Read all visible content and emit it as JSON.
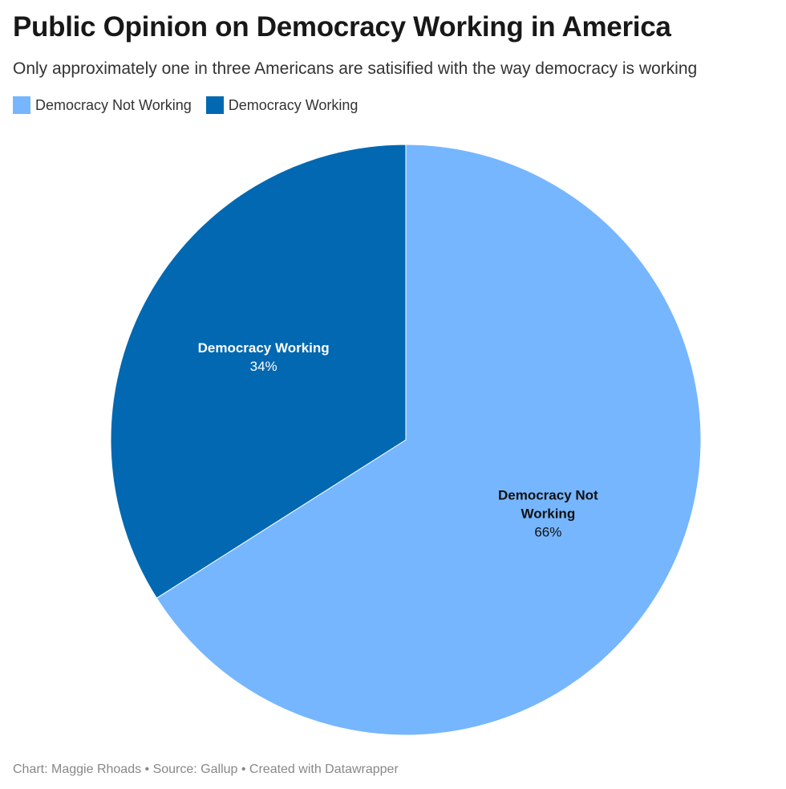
{
  "title": "Public Opinion on Democracy Working in America",
  "subtitle": "Only approximately one in three Americans are satisified with the way democracy is working",
  "legend": [
    {
      "label": "Democracy Not Working",
      "color": "#76b6fe"
    },
    {
      "label": "Democracy Working",
      "color": "#0268b1"
    }
  ],
  "chart_data": {
    "type": "pie",
    "slices": [
      {
        "label": "Democracy Not Working",
        "label_lines": [
          "Democracy Not",
          "Working"
        ],
        "value": 66,
        "value_label": "66%",
        "color": "#76b6fe",
        "label_color": "#111111"
      },
      {
        "label": "Democracy Working",
        "label_lines": [
          "Democracy Working"
        ],
        "value": 34,
        "value_label": "34%",
        "color": "#0268b1",
        "label_color": "#ffffff"
      }
    ],
    "start": "12 o'clock",
    "direction": "clockwise"
  },
  "footer": "Chart: Maggie Rhoads • Source: Gallup • Created with Datawrapper"
}
